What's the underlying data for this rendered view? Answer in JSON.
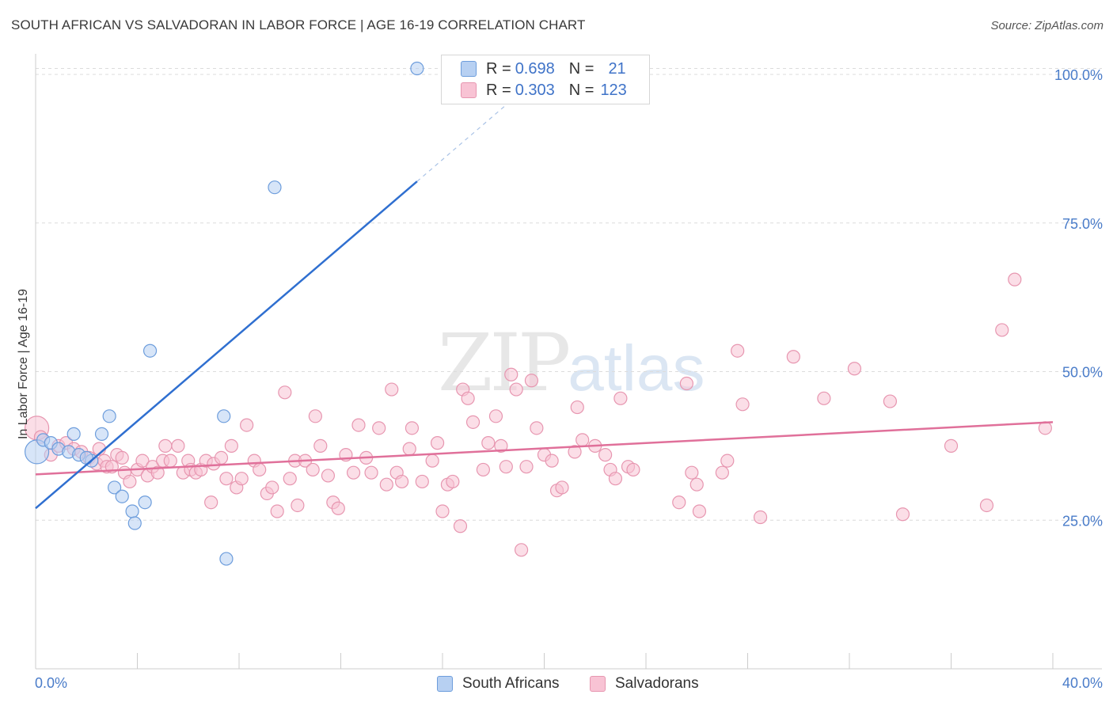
{
  "title": "SOUTH AFRICAN VS SALVADORAN IN LABOR FORCE | AGE 16-19 CORRELATION CHART",
  "source": "Source: ZipAtlas.com",
  "watermark": {
    "zip": "ZIP",
    "atlas": "atlas"
  },
  "legend": {
    "rows": [
      {
        "r_label": "R =",
        "r_value": "0.698",
        "n_label": "N =",
        "n_value": "21",
        "fill": "#b7d0f2",
        "stroke": "#6d9ddc"
      },
      {
        "r_label": "R =",
        "r_value": "0.303",
        "n_label": "N =",
        "n_value": "123",
        "fill": "#f8c3d4",
        "stroke": "#e796b0"
      }
    ]
  },
  "bottom_legend": [
    {
      "label": "South Africans",
      "fill": "#b7d0f2",
      "stroke": "#6d9ddc"
    },
    {
      "label": "Salvadorans",
      "fill": "#f8c3d4",
      "stroke": "#e796b0"
    }
  ],
  "chart_data": {
    "type": "scatter",
    "title": "SOUTH AFRICAN VS SALVADORAN IN LABOR FORCE | AGE 16-19 CORRELATION CHART",
    "xlabel": "",
    "ylabel": "In Labor Force | Age 16-19",
    "xlim": [
      0,
      40
    ],
    "ylim": [
      0,
      102
    ],
    "x_tick_labels": [
      "0.0%",
      "40.0%"
    ],
    "y_ticks": [
      25,
      50,
      75,
      100
    ],
    "y_tick_labels": [
      "25.0%",
      "50.0%",
      "75.0%",
      "100.0%"
    ],
    "series": [
      {
        "name": "South Africans",
        "color": "#6d9ddc",
        "fill": "#b7d0f2",
        "points": [
          [
            0.05,
            36.5
          ],
          [
            0.3,
            38.5
          ],
          [
            0.6,
            38.0
          ],
          [
            0.9,
            37.0
          ],
          [
            1.3,
            36.5
          ],
          [
            1.5,
            39.5
          ],
          [
            1.7,
            36.0
          ],
          [
            2.2,
            35.0
          ],
          [
            2.0,
            35.5
          ],
          [
            2.6,
            39.5
          ],
          [
            2.9,
            42.5
          ],
          [
            3.1,
            30.5
          ],
          [
            3.4,
            29.0
          ],
          [
            3.8,
            26.5
          ],
          [
            3.9,
            24.5
          ],
          [
            4.3,
            28.0
          ],
          [
            4.5,
            53.5
          ],
          [
            7.4,
            42.5
          ],
          [
            7.5,
            18.5
          ],
          [
            9.4,
            81.0
          ],
          [
            15.0,
            101.0
          ]
        ],
        "trend": {
          "x0": 0,
          "y0": 27.0,
          "x1": 15.0,
          "y1": 82.0,
          "dash_to_x": 19.0,
          "dash_to_y": 96.7
        }
      },
      {
        "name": "Salvadorans",
        "color": "#e796b0",
        "fill": "#f8c3d4",
        "points": [
          [
            0.05,
            40.5
          ],
          [
            0.2,
            39.0
          ],
          [
            0.6,
            36.0
          ],
          [
            0.9,
            37.5
          ],
          [
            1.2,
            38.0
          ],
          [
            1.5,
            37.0
          ],
          [
            1.8,
            36.5
          ],
          [
            2.1,
            35.5
          ],
          [
            2.4,
            34.5
          ],
          [
            2.5,
            37.0
          ],
          [
            2.7,
            35.0
          ],
          [
            2.8,
            34.0
          ],
          [
            3.0,
            34.0
          ],
          [
            3.2,
            36.0
          ],
          [
            3.4,
            35.5
          ],
          [
            3.5,
            33.0
          ],
          [
            3.7,
            31.5
          ],
          [
            4.0,
            33.5
          ],
          [
            4.2,
            35.0
          ],
          [
            4.4,
            32.5
          ],
          [
            4.6,
            34.0
          ],
          [
            4.8,
            33.0
          ],
          [
            5.0,
            35.0
          ],
          [
            5.1,
            37.5
          ],
          [
            5.3,
            35.0
          ],
          [
            5.6,
            37.5
          ],
          [
            5.8,
            33.0
          ],
          [
            6.0,
            35.0
          ],
          [
            6.1,
            33.5
          ],
          [
            6.3,
            33.0
          ],
          [
            6.5,
            33.5
          ],
          [
            6.7,
            35.0
          ],
          [
            6.9,
            28.0
          ],
          [
            7.0,
            34.5
          ],
          [
            7.3,
            35.5
          ],
          [
            7.5,
            32.0
          ],
          [
            7.7,
            37.5
          ],
          [
            7.9,
            30.5
          ],
          [
            8.1,
            32.0
          ],
          [
            8.3,
            41.0
          ],
          [
            8.6,
            35.0
          ],
          [
            8.8,
            33.5
          ],
          [
            9.1,
            29.5
          ],
          [
            9.3,
            30.5
          ],
          [
            9.5,
            26.5
          ],
          [
            9.8,
            46.5
          ],
          [
            10.0,
            32.0
          ],
          [
            10.2,
            35.0
          ],
          [
            10.3,
            27.5
          ],
          [
            10.6,
            35.0
          ],
          [
            10.9,
            33.5
          ],
          [
            11.0,
            42.5
          ],
          [
            11.2,
            37.5
          ],
          [
            11.5,
            32.5
          ],
          [
            11.7,
            28.0
          ],
          [
            11.9,
            27.0
          ],
          [
            12.2,
            36.0
          ],
          [
            12.5,
            33.0
          ],
          [
            12.7,
            41.0
          ],
          [
            13.0,
            35.5
          ],
          [
            13.2,
            33.0
          ],
          [
            13.5,
            40.5
          ],
          [
            13.8,
            31.0
          ],
          [
            14.0,
            47.0
          ],
          [
            14.2,
            33.0
          ],
          [
            14.4,
            31.5
          ],
          [
            14.7,
            37.0
          ],
          [
            14.8,
            40.5
          ],
          [
            15.2,
            31.5
          ],
          [
            15.6,
            35.0
          ],
          [
            15.8,
            38.0
          ],
          [
            16.0,
            26.5
          ],
          [
            16.2,
            31.0
          ],
          [
            16.4,
            31.5
          ],
          [
            16.7,
            24.0
          ],
          [
            16.8,
            47.0
          ],
          [
            17.0,
            45.5
          ],
          [
            17.2,
            41.5
          ],
          [
            17.6,
            33.5
          ],
          [
            17.8,
            38.0
          ],
          [
            18.1,
            42.5
          ],
          [
            18.3,
            37.5
          ],
          [
            18.5,
            34.0
          ],
          [
            18.7,
            49.5
          ],
          [
            18.9,
            47.0
          ],
          [
            19.1,
            20.0
          ],
          [
            19.3,
            34.0
          ],
          [
            19.5,
            48.5
          ],
          [
            19.7,
            40.5
          ],
          [
            20.0,
            36.0
          ],
          [
            20.3,
            35.0
          ],
          [
            20.5,
            30.0
          ],
          [
            20.7,
            30.5
          ],
          [
            21.2,
            36.5
          ],
          [
            21.3,
            44.0
          ],
          [
            21.5,
            38.5
          ],
          [
            22.0,
            37.5
          ],
          [
            22.4,
            36.0
          ],
          [
            22.6,
            33.5
          ],
          [
            22.8,
            32.0
          ],
          [
            23.0,
            45.5
          ],
          [
            23.3,
            34.0
          ],
          [
            23.5,
            33.5
          ],
          [
            25.3,
            28.0
          ],
          [
            25.6,
            48.0
          ],
          [
            25.8,
            33.0
          ],
          [
            26.0,
            31.0
          ],
          [
            26.1,
            26.5
          ],
          [
            27.0,
            33.0
          ],
          [
            27.2,
            35.0
          ],
          [
            27.6,
            53.5
          ],
          [
            27.8,
            44.5
          ],
          [
            28.5,
            25.5
          ],
          [
            29.8,
            52.5
          ],
          [
            31.0,
            45.5
          ],
          [
            32.2,
            50.5
          ],
          [
            33.6,
            45.0
          ],
          [
            34.1,
            26.0
          ],
          [
            36.0,
            37.5
          ],
          [
            37.4,
            27.5
          ],
          [
            38.0,
            57.0
          ],
          [
            38.5,
            65.5
          ],
          [
            39.7,
            40.5
          ]
        ],
        "trend": {
          "x0": 0,
          "y0": 32.7,
          "x1": 40.0,
          "y1": 41.5
        }
      }
    ]
  }
}
